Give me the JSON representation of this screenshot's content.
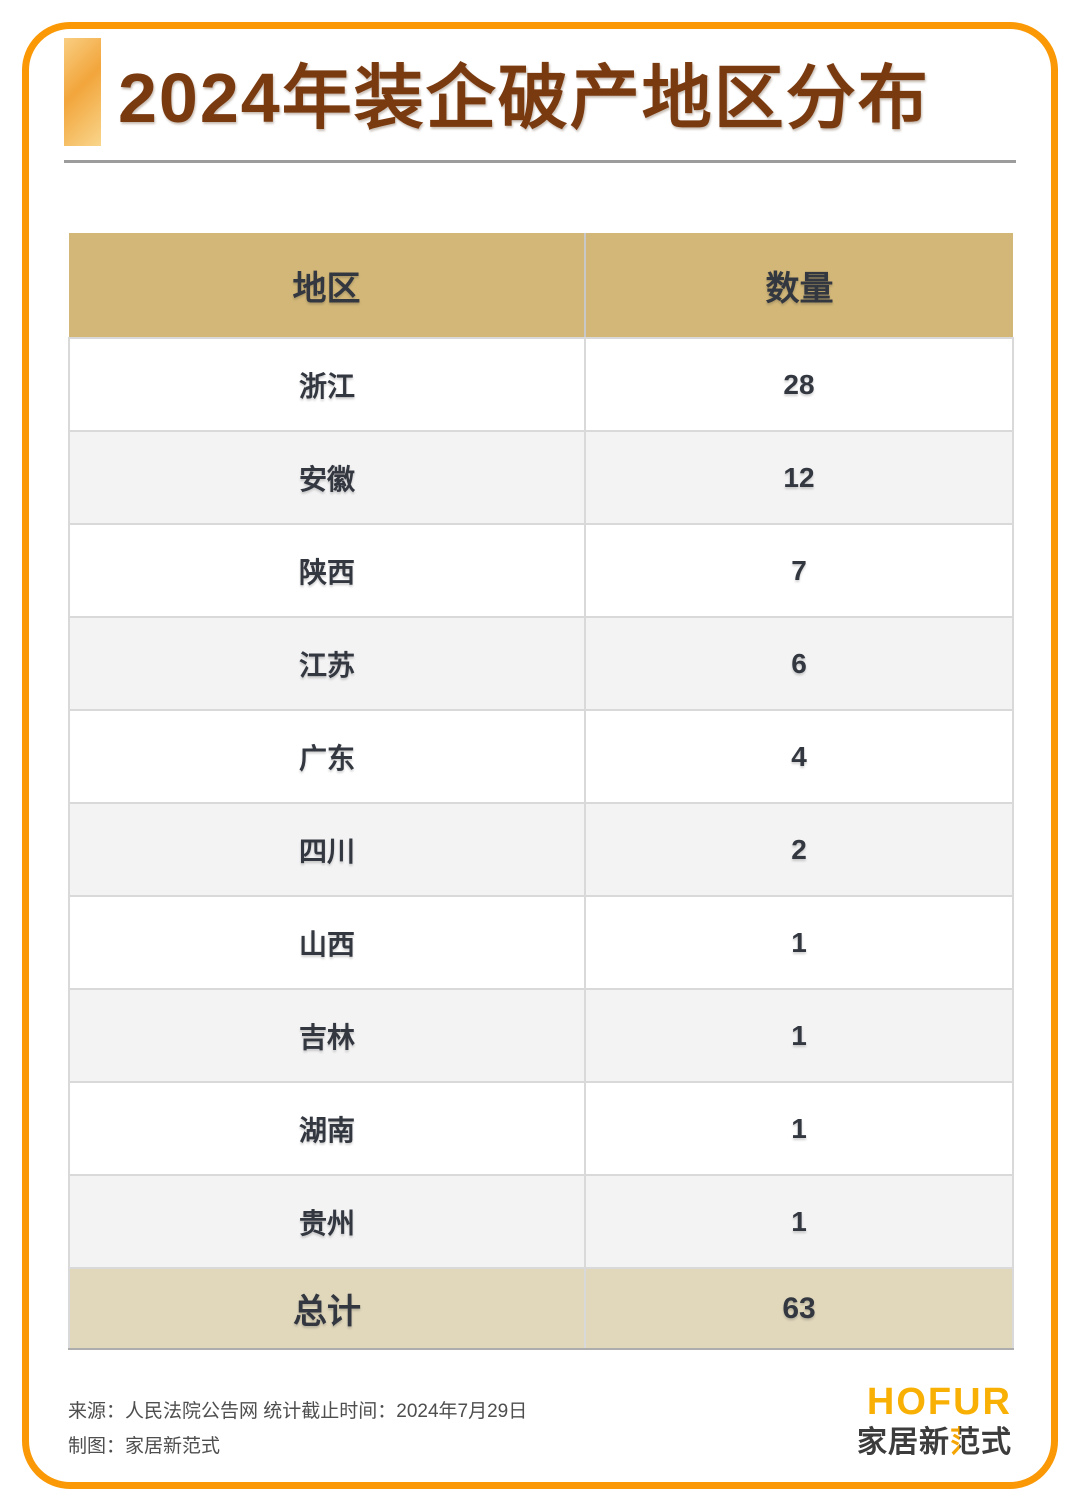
{
  "header": {
    "title": "2024年装企破产地区分布"
  },
  "table": {
    "columns": {
      "region": "地区",
      "count": "数量"
    },
    "rows": [
      {
        "region": "浙江",
        "count": "28"
      },
      {
        "region": "安徽",
        "count": "12"
      },
      {
        "region": "陕西",
        "count": "7"
      },
      {
        "region": "江苏",
        "count": "6"
      },
      {
        "region": "广东",
        "count": "4"
      },
      {
        "region": "四川",
        "count": "2"
      },
      {
        "region": "山西",
        "count": "1"
      },
      {
        "region": "吉林",
        "count": "1"
      },
      {
        "region": "湖南",
        "count": "1"
      },
      {
        "region": "贵州",
        "count": "1"
      }
    ],
    "total": {
      "label": "总计",
      "value": "63"
    }
  },
  "footer": {
    "source_line": "来源：人民法院公告网 统计截止时间：2024年7月29日",
    "credit_line": "制图：家居新范式",
    "logo_name": "HOFUR",
    "logo_sub_prefix": "家居新",
    "logo_sub_accent": "范",
    "logo_sub_suffix": "式"
  },
  "colors": {
    "frame_orange": "#FA9805",
    "title_brown": "#7A3A10",
    "accent_bar_light": "#F9CE82",
    "accent_bar_dark": "#F2A53B",
    "header_tan": "#D2B778",
    "total_beige": "#E1D8BC",
    "alt_row_gray": "#F3F3F4",
    "text_dark": "#333740",
    "logo_orange": "#F9B005"
  },
  "chart_data": {
    "type": "table",
    "title": "2024年装企破产地区分布",
    "columns": [
      "地区",
      "数量"
    ],
    "categories": [
      "浙江",
      "安徽",
      "陕西",
      "江苏",
      "广东",
      "四川",
      "山西",
      "吉林",
      "湖南",
      "贵州"
    ],
    "values": [
      28,
      12,
      7,
      6,
      4,
      2,
      1,
      1,
      1,
      1
    ],
    "total_label": "总计",
    "total": 63,
    "source": "来源：人民法院公告网 统计截止时间：2024年7月29日",
    "credit": "制图：家居新范式"
  }
}
